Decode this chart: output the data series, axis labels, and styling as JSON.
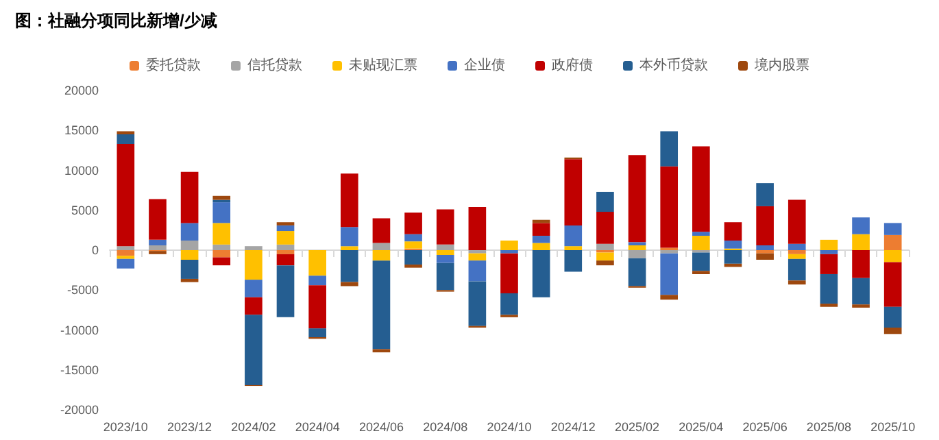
{
  "chart_data": {
    "type": "bar",
    "title": "图：社融分项同比新增/少减",
    "stacked": true,
    "legend": "top",
    "categories": [
      "2023/10",
      null,
      "2023/12",
      null,
      "2024/02",
      null,
      "2024/04",
      null,
      "2024/06",
      null,
      "2024/08",
      null,
      "2024/10",
      null,
      "2024/12",
      null,
      "2025/02",
      null,
      "2025/04",
      null,
      "2025/06",
      null,
      "2025/08",
      null,
      "2025/10"
    ],
    "ylim": [
      -20000,
      20000
    ],
    "yticks": [
      -20000,
      -15000,
      -10000,
      -5000,
      0,
      5000,
      10000,
      15000,
      20000
    ],
    "series": [
      {
        "name": "委托贷款",
        "color": "#ed7d31",
        "values": [
          -700,
          -100,
          0,
          -900,
          0,
          -500,
          0,
          0,
          0,
          200,
          0,
          0,
          0,
          0,
          0,
          -300,
          0,
          300,
          0,
          0,
          -400,
          -500,
          0,
          0,
          1900
        ]
      },
      {
        "name": "信托贷款",
        "color": "#a5a5a5",
        "values": [
          500,
          600,
          1200,
          700,
          500,
          700,
          0,
          0,
          900,
          null,
          700,
          -400,
          0,
          0,
          0,
          800,
          -1000,
          -400,
          -300,
          0,
          0,
          0,
          0,
          0,
          0
        ]
      },
      {
        "name": "未贴现汇票",
        "color": "#ffc000",
        "values": [
          -400,
          0,
          -1200,
          2700,
          -3700,
          1700,
          -3200,
          500,
          -1300,
          900,
          -600,
          -900,
          1200,
          900,
          500,
          -1000,
          600,
          0,
          1800,
          200,
          0,
          -600,
          1300,
          2000,
          -1500
        ]
      },
      {
        "name": "企业债",
        "color": "#4472c4",
        "values": [
          -1200,
          700,
          2200,
          2600,
          -2200,
          700,
          -1200,
          2400,
          0,
          900,
          -1000,
          -2600,
          -400,
          900,
          2600,
          0,
          400,
          -5200,
          500,
          1000,
          600,
          800,
          -500,
          2100,
          1500
        ]
      },
      {
        "name": "政府债",
        "color": "#c00000",
        "values": [
          12800,
          5100,
          6400,
          -1000,
          -2200,
          -1400,
          -5400,
          6700,
          3100,
          2700,
          4400,
          5400,
          -5000,
          1600,
          8300,
          4000,
          10900,
          10200,
          10700,
          2300,
          4900,
          5500,
          -2500,
          -3500,
          -5600
        ]
      },
      {
        "name": "本外币贷款",
        "color": "#255e91",
        "values": [
          1200,
          0,
          -2400,
          300,
          -8800,
          -6500,
          -1100,
          -4000,
          -11100,
          -1800,
          -3400,
          -5600,
          -2700,
          -5900,
          -2700,
          2500,
          -3500,
          4400,
          -2300,
          -1700,
          2900,
          -2700,
          -3700,
          -3300,
          -2600
        ]
      },
      {
        "name": "境内股票",
        "color": "#9e480e",
        "values": [
          400,
          -400,
          -400,
          500,
          -100,
          400,
          -200,
          -500,
          -400,
          -400,
          -200,
          -200,
          -300,
          400,
          200,
          -600,
          -200,
          -600,
          -400,
          -400,
          -800,
          -500,
          -400,
          -400,
          -800
        ]
      }
    ]
  }
}
